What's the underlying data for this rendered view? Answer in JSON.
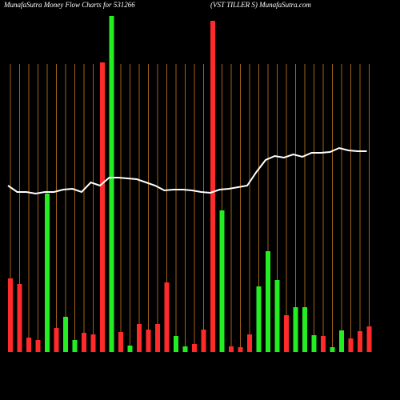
{
  "chart_data": {
    "type": "bar",
    "title": "MunafaSutra  Money Flow  Charts for 531266",
    "subtitle": "(VST TILLER S) MunafaSutra.com",
    "values": [
      92,
      85,
      18,
      15,
      198,
      30,
      44,
      15,
      24,
      22,
      362,
      420,
      25,
      8,
      35,
      28,
      35,
      87,
      20,
      7,
      10,
      28,
      414,
      177,
      7,
      6,
      22,
      82,
      126,
      90,
      46,
      56,
      56,
      21,
      20,
      6,
      27,
      17,
      26,
      32
    ],
    "bar_colors": [
      "#ff2a2a",
      "#ff2a2a",
      "#ff2a2a",
      "#ff2a2a",
      "#22ee22",
      "#ff2a2a",
      "#22ee22",
      "#22ee22",
      "#ff2a2a",
      "#ff2a2a",
      "#ff2a2a",
      "#22ee22",
      "#ff2a2a",
      "#22ee22",
      "#ff2a2a",
      "#ff2a2a",
      "#ff2a2a",
      "#ff2a2a",
      "#22ee22",
      "#22ee22",
      "#ff2a2a",
      "#ff2a2a",
      "#ff2a2a",
      "#22ee22",
      "#ff2a2a",
      "#ff2a2a",
      "#ff2a2a",
      "#22ee22",
      "#22ee22",
      "#22ee22",
      "#ff2a2a",
      "#22ee22",
      "#22ee22",
      "#22ee22",
      "#ff2a2a",
      "#22ee22",
      "#22ee22",
      "#ff2a2a",
      "#ff2a2a",
      "#ff2a2a"
    ],
    "line_values": [
      208,
      200,
      200,
      198,
      200,
      200,
      203,
      204,
      200,
      212,
      208,
      218,
      218,
      217,
      216,
      212,
      208,
      202,
      203,
      203,
      202,
      200,
      199,
      203,
      204,
      206,
      208,
      225,
      240,
      245,
      243,
      247,
      244,
      249,
      249,
      250,
      255,
      252,
      251,
      251
    ],
    "line_color": "#ffffff",
    "ylim": [
      0,
      420
    ]
  }
}
